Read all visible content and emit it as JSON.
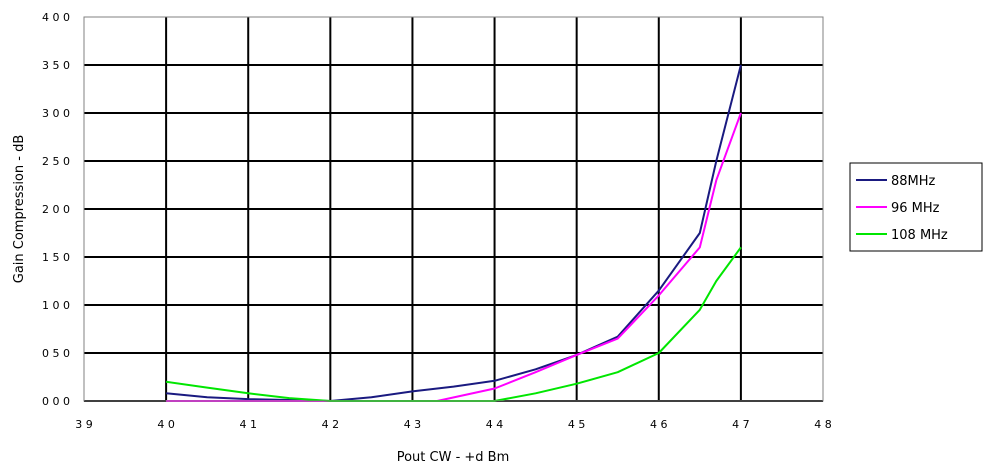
{
  "chart_data": {
    "type": "line",
    "title": "",
    "xlabel": "Pout CW - +d Bm",
    "ylabel": "Gain Compression - dB",
    "xlim": [
      39,
      48
    ],
    "ylim": [
      0,
      4
    ],
    "grid": true,
    "legend_position": "right",
    "x_ticks": [
      39,
      40,
      41,
      42,
      43,
      44,
      45,
      46,
      47,
      48
    ],
    "x_tick_labels": [
      "3 9",
      "4 0",
      "4 1",
      "4 2",
      "4 3",
      "4 4",
      "4 5",
      "4 6",
      "4 7",
      "4 8"
    ],
    "y_ticks": [
      0,
      0.5,
      1,
      1.5,
      2,
      2.5,
      3,
      3.5,
      4
    ],
    "y_tick_labels": [
      "0 0 0",
      "0 5 0",
      "1 0 0",
      "1 5 0",
      "2 0 0",
      "2 5 0",
      "3 0 0",
      "3 5 0",
      "4 0 0"
    ],
    "series": [
      {
        "name": "88MHz",
        "color": "#1a1a80",
        "x": [
          40.0,
          40.5,
          41.0,
          41.5,
          42.0,
          42.5,
          43.0,
          43.5,
          44.0,
          44.5,
          45.0,
          45.5,
          46.0,
          46.5,
          46.7,
          47.0
        ],
        "y": [
          0.08,
          0.04,
          0.02,
          0.01,
          0.0,
          0.04,
          0.1,
          0.15,
          0.21,
          0.33,
          0.48,
          0.67,
          1.15,
          1.75,
          2.5,
          3.5
        ]
      },
      {
        "name": "96 MHz",
        "color": "#ff00ff",
        "x": [
          40.0,
          41.0,
          42.0,
          43.3,
          44.0,
          44.5,
          45.0,
          45.5,
          46.0,
          46.5,
          46.7,
          47.0
        ],
        "y": [
          0.0,
          0.0,
          0.0,
          0.0,
          0.13,
          0.3,
          0.48,
          0.65,
          1.1,
          1.6,
          2.3,
          3.0
        ]
      },
      {
        "name": "108 MHz",
        "color": "#00e600",
        "x": [
          40.0,
          40.5,
          41.0,
          41.5,
          42.0,
          43.0,
          44.0,
          44.5,
          45.0,
          45.5,
          46.0,
          46.5,
          46.7,
          47.0
        ],
        "y": [
          0.2,
          0.14,
          0.08,
          0.03,
          0.0,
          0.0,
          0.0,
          0.08,
          0.18,
          0.3,
          0.5,
          0.95,
          1.25,
          1.6
        ]
      }
    ]
  }
}
